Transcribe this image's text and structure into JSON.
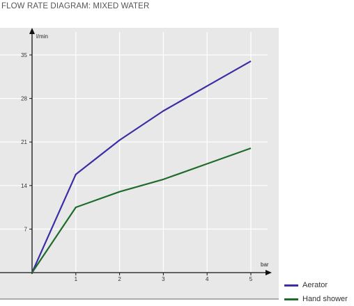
{
  "page_title": "FLOW RATE DIAGRAM: MIXED WATER",
  "chart_data": {
    "type": "line",
    "title": "FLOW RATE DIAGRAM: MIXED WATER",
    "xlabel": "bar",
    "ylabel": "l/min",
    "x": [
      0,
      1,
      2,
      3,
      4,
      5
    ],
    "x_ticks": [
      "1",
      "2",
      "3",
      "4",
      "5"
    ],
    "y_ticks": [
      "7",
      "14",
      "21",
      "28",
      "35"
    ],
    "xlim": [
      0,
      5
    ],
    "ylim": [
      0,
      35
    ],
    "grid": true,
    "legend_position": "bottom-right",
    "series": [
      {
        "name": "Aerator",
        "color": "#3a2ea6",
        "values": [
          0,
          15.8,
          21.3,
          26.0,
          30.0,
          34.0
        ]
      },
      {
        "name": "Hand shower",
        "color": "#1e6b2a",
        "values": [
          0,
          10.5,
          13.0,
          15.0,
          17.5,
          20.0
        ]
      }
    ]
  }
}
